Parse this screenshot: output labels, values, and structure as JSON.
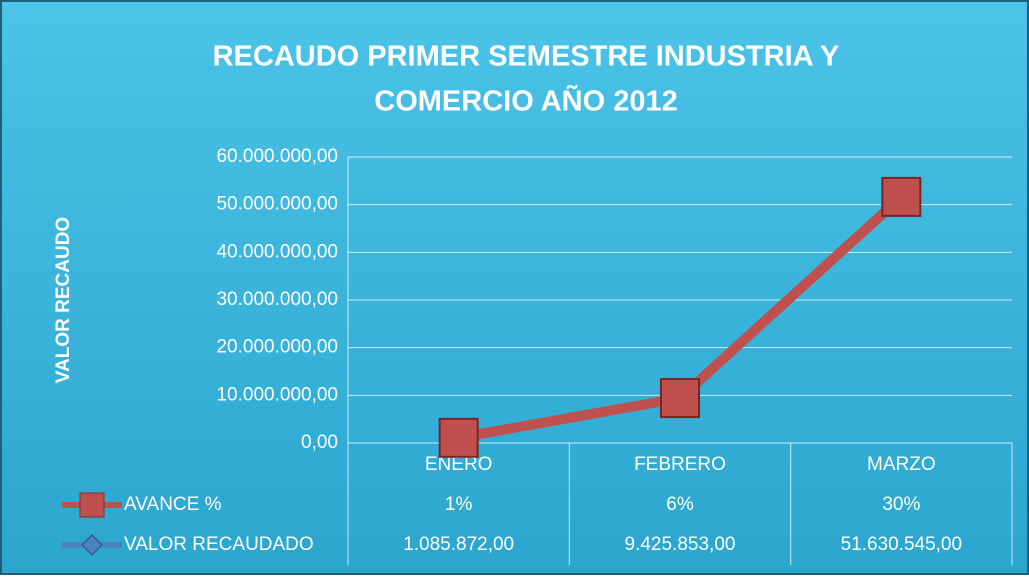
{
  "chart_data": {
    "type": "line",
    "title": [
      "RECAUDO PRIMER SEMESTRE INDUSTRIA Y",
      "COMERCIO  AÑO 2012"
    ],
    "y_label": "VALOR  RECAUDO",
    "categories": [
      "ENERO",
      "FEBRERO",
      "MARZO"
    ],
    "series": [
      {
        "name": "AVANCE %",
        "color": "#c0504d",
        "marker": "square",
        "values": [
          1,
          6,
          30
        ],
        "value_labels": [
          "1%",
          "6%",
          "30%"
        ]
      },
      {
        "name": "VALOR RECAUDADO",
        "color": "#4f81bd",
        "marker": "diamond",
        "values": [
          1085872,
          9425853,
          51630545
        ],
        "value_labels": [
          "1.085.872,00",
          "9.425.853,00",
          "51.630.545,00"
        ]
      }
    ],
    "line_color": "#c0504d",
    "ylim": [
      0,
      60000000
    ],
    "yticks": [
      {
        "value": 0,
        "label": "0,00"
      },
      {
        "value": 10000000,
        "label": "10.000.000,00"
      },
      {
        "value": 20000000,
        "label": "20.000.000,00"
      },
      {
        "value": 30000000,
        "label": "30.000.000,00"
      },
      {
        "value": 40000000,
        "label": "40.000.000,00"
      },
      {
        "value": 50000000,
        "label": "50.000.000,00"
      },
      {
        "value": 60000000,
        "label": "60.000.000,00"
      }
    ],
    "grid": true
  }
}
